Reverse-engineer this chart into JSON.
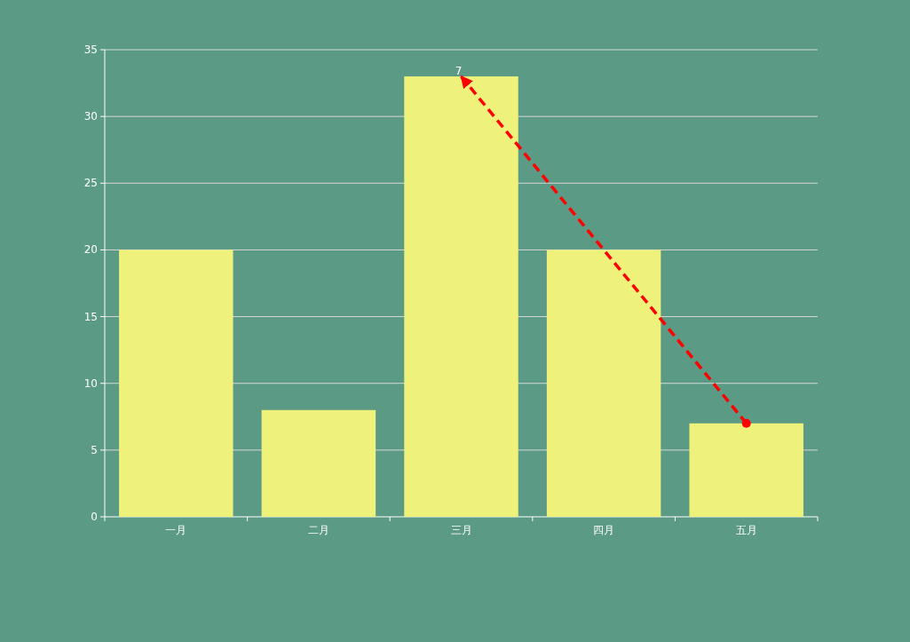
{
  "chart_data": {
    "type": "bar",
    "categories": [
      "一月",
      "二月",
      "三月",
      "四月",
      "五月"
    ],
    "series": [
      {
        "color": "#eef27a",
        "values": [
          20,
          8,
          33,
          20,
          7
        ]
      },
      {
        "type": "line",
        "color": "#ff0000",
        "values": [
          null,
          null,
          33,
          null,
          7
        ],
        "line_style": "dashed",
        "marker": "circle"
      }
    ],
    "ylim": [
      0,
      35
    ],
    "yticks": [
      0,
      5,
      10,
      15,
      20,
      25,
      30,
      35
    ],
    "grid": "y",
    "annotations": [
      {
        "text": "7",
        "x": "三月",
        "y": 33
      }
    ]
  }
}
